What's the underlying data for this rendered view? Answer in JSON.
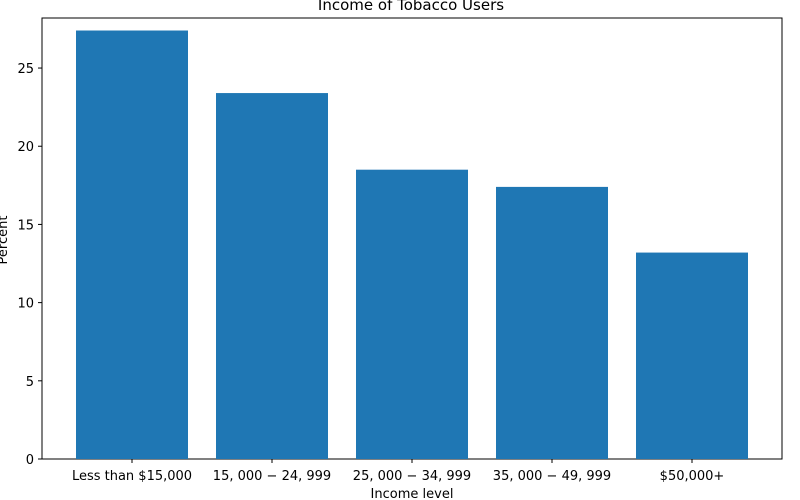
{
  "chart_data": {
    "type": "bar",
    "title": "Income of Tobacco Users",
    "xlabel": "Income level",
    "ylabel": "Percent",
    "categories": [
      "Less than $15,000",
      "$15,000-$24,999",
      "$25,000-$34,999",
      "$35,000-$49,999",
      "$50,000+"
    ],
    "category_display": [
      "Less than $15,000",
      "15, 000 − 24, 999",
      "25, 000 − 34, 999",
      "35, 000 − 49, 999",
      "$50,000+"
    ],
    "values": [
      27.4,
      23.4,
      18.5,
      17.4,
      13.2
    ],
    "ylim": [
      0,
      28.2
    ],
    "yticks": [
      0,
      5,
      10,
      15,
      20,
      25
    ],
    "grid": false,
    "bar_color": "#1f77b4"
  }
}
